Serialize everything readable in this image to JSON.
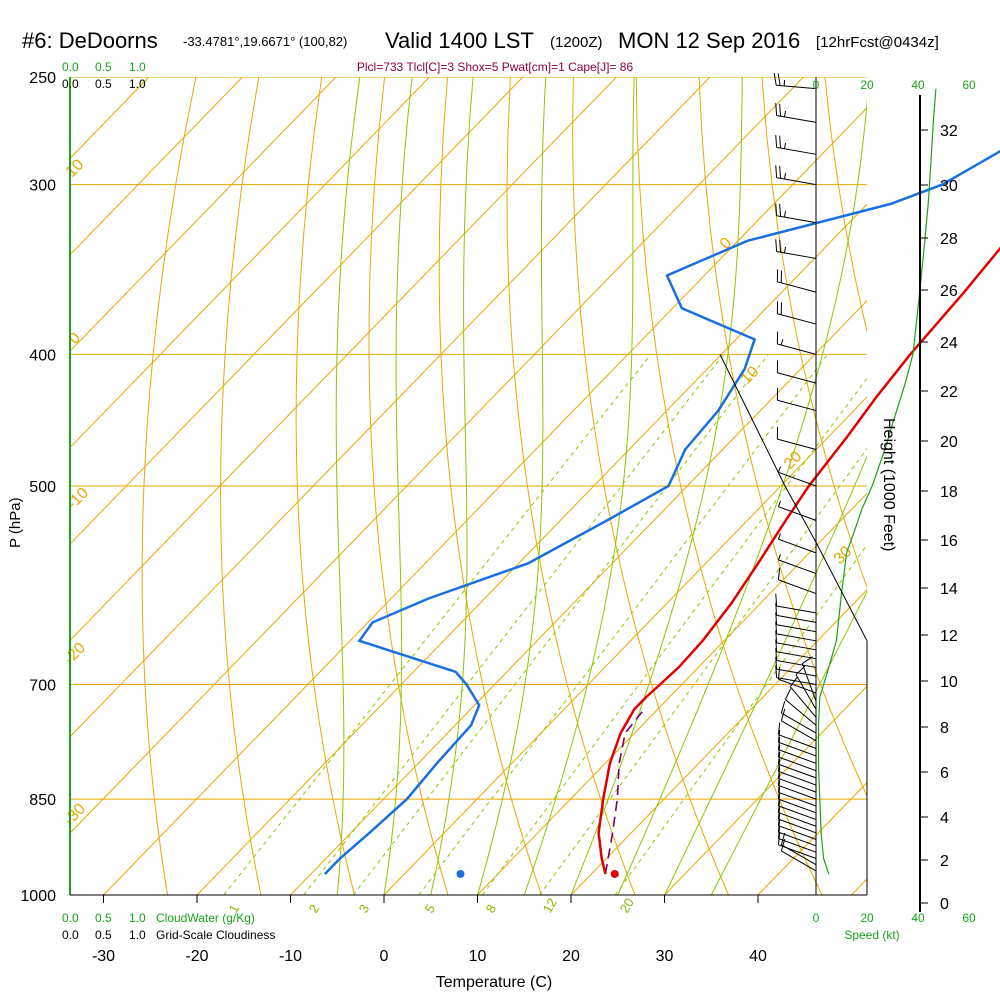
{
  "header": {
    "station": "#6: DeDoorns",
    "coords": "-33.4781°,19.6671° (100,82)",
    "valid": "Valid 1400 LST",
    "utc": "(1200Z)",
    "date": "MON 12 Sep 2016",
    "forecast": "[12hrFcst@0434z]"
  },
  "params_line": "Plcl=733 Tlcl[C]=3 Shox=5 Pwat[cm]=1 Cape[J]= 86",
  "colors": {
    "temperature": "#e00000",
    "dewpoint": "#1a6fe0",
    "parcel": "#7a0060",
    "isotherm": "#e8a800",
    "dry_adiabat": "#e8a800",
    "moist_adiabat": "#8cc800",
    "mixing_ratio": "#8cc800",
    "speed": "#1aa31a"
  },
  "cloud_scale": {
    "top_green": [
      "0.0",
      "0.5",
      "1.0"
    ],
    "top_black": [
      "0.0",
      "0.5",
      "1.0"
    ],
    "bottom_green": [
      "0.0",
      "0.5",
      "1.0"
    ],
    "bottom_black": [
      "0.0",
      "0.5",
      "1.0"
    ],
    "cloudwater_label": "CloudWater (g/Kg)",
    "cloudiness_label": "Grid-Scale Cloudiness"
  },
  "speed_axis": {
    "top_ticks": [
      "0",
      "20",
      "40",
      "60"
    ],
    "bottom_ticks": [
      "0",
      "20",
      "40",
      "60"
    ],
    "label": "Speed (kt)"
  },
  "height_axis": {
    "label": "Height (1000 Feet)",
    "ticks": [
      "0",
      "2",
      "4",
      "6",
      "8",
      "10",
      "12",
      "14",
      "16",
      "18",
      "20",
      "22",
      "24",
      "26",
      "28",
      "30",
      "32"
    ]
  },
  "chart_data": {
    "type": "skew-t",
    "xlabel": "Temperature (C)",
    "ylabel": "P (hPa)",
    "x_ticks": [
      "-30",
      "-20",
      "-10",
      "0",
      "10",
      "20",
      "30",
      "40"
    ],
    "y_ticks": [
      "250",
      "300",
      "400",
      "500",
      "700",
      "850",
      "1000"
    ],
    "xlim": [
      -34,
      36
    ],
    "ylim": [
      1000,
      250
    ],
    "isotherm_labels": [
      "10",
      "0",
      "-10",
      "-20",
      "-30",
      "0",
      "10",
      "20",
      "30"
    ],
    "mixing_ratio_labels": [
      "1",
      "2",
      "3",
      "5",
      "8",
      "12",
      "20"
    ],
    "temperature": [
      [
        965,
        21.5
      ],
      [
        940,
        19.5
      ],
      [
        900,
        16.5
      ],
      [
        850,
        13.5
      ],
      [
        800,
        10.5
      ],
      [
        760,
        8.5
      ],
      [
        730,
        7.5
      ],
      [
        715,
        7.5
      ],
      [
        700,
        7.7
      ],
      [
        680,
        7.9
      ],
      [
        650,
        7.7
      ],
      [
        610,
        6.9
      ],
      [
        570,
        5.6
      ],
      [
        530,
        4.1
      ],
      [
        500,
        3.0
      ],
      [
        460,
        2.0
      ],
      [
        430,
        1.0
      ],
      [
        400,
        0.2
      ],
      [
        360,
        -0.5
      ],
      [
        330,
        -1.3
      ],
      [
        300,
        -1.1
      ],
      [
        280,
        -0.5
      ],
      [
        255,
        0.3
      ]
    ],
    "dewpoint": [
      [
        965,
        -8.5
      ],
      [
        940,
        -8.5
      ],
      [
        900,
        -8
      ],
      [
        850,
        -7.5
      ],
      [
        800,
        -8
      ],
      [
        750,
        -8.3
      ],
      [
        725,
        -9.5
      ],
      [
        700,
        -13
      ],
      [
        685,
        -15.5
      ],
      [
        650,
        -29
      ],
      [
        630,
        -29.5
      ],
      [
        605,
        -26
      ],
      [
        570,
        -19
      ],
      [
        530,
        -15
      ],
      [
        500,
        -12
      ],
      [
        470,
        -14
      ],
      [
        440,
        -14.5
      ],
      [
        410,
        -16
      ],
      [
        390,
        -18
      ],
      [
        370,
        -29
      ],
      [
        350,
        -34
      ],
      [
        330,
        -29
      ],
      [
        310,
        -17.5
      ],
      [
        300,
        -14
      ],
      [
        285,
        -11.5
      ],
      [
        270,
        -9
      ],
      [
        255,
        -8
      ]
    ],
    "parcel": [
      [
        965,
        21.5
      ],
      [
        900,
        18
      ],
      [
        850,
        15
      ],
      [
        800,
        11.5
      ],
      [
        760,
        9
      ],
      [
        733,
        8.6
      ]
    ],
    "surface_temperature": 22.5,
    "surface_dewpoint": 6,
    "surface_pressure": 965,
    "winds": [
      {
        "p": 960,
        "dir": 300,
        "spd": 12
      },
      {
        "p": 950,
        "dir": 300,
        "spd": 12
      },
      {
        "p": 940,
        "dir": 290,
        "spd": 12
      },
      {
        "p": 930,
        "dir": 290,
        "spd": 13
      },
      {
        "p": 920,
        "dir": 290,
        "spd": 13
      },
      {
        "p": 910,
        "dir": 290,
        "spd": 13
      },
      {
        "p": 900,
        "dir": 290,
        "spd": 13
      },
      {
        "p": 890,
        "dir": 290,
        "spd": 14
      },
      {
        "p": 880,
        "dir": 290,
        "spd": 14
      },
      {
        "p": 870,
        "dir": 290,
        "spd": 14
      },
      {
        "p": 860,
        "dir": 290,
        "spd": 14
      },
      {
        "p": 850,
        "dir": 290,
        "spd": 14
      },
      {
        "p": 840,
        "dir": 290,
        "spd": 14
      },
      {
        "p": 830,
        "dir": 290,
        "spd": 14
      },
      {
        "p": 820,
        "dir": 290,
        "spd": 14
      },
      {
        "p": 810,
        "dir": 290,
        "spd": 14
      },
      {
        "p": 800,
        "dir": 290,
        "spd": 14
      },
      {
        "p": 790,
        "dir": 290,
        "spd": 14
      },
      {
        "p": 780,
        "dir": 290,
        "spd": 14
      },
      {
        "p": 770,
        "dir": 300,
        "spd": 14
      },
      {
        "p": 760,
        "dir": 300,
        "spd": 14
      },
      {
        "p": 750,
        "dir": 310,
        "spd": 12
      },
      {
        "p": 740,
        "dir": 320,
        "spd": 12
      },
      {
        "p": 730,
        "dir": 330,
        "spd": 10
      },
      {
        "p": 720,
        "dir": 340,
        "spd": 10
      },
      {
        "p": 710,
        "dir": 290,
        "spd": 10
      },
      {
        "p": 700,
        "dir": 280,
        "spd": 10
      },
      {
        "p": 690,
        "dir": 280,
        "spd": 10
      },
      {
        "p": 680,
        "dir": 280,
        "spd": 10
      },
      {
        "p": 670,
        "dir": 280,
        "spd": 10
      },
      {
        "p": 660,
        "dir": 280,
        "spd": 10
      },
      {
        "p": 650,
        "dir": 280,
        "spd": 10
      },
      {
        "p": 640,
        "dir": 280,
        "spd": 10
      },
      {
        "p": 630,
        "dir": 280,
        "spd": 10
      },
      {
        "p": 620,
        "dir": 280,
        "spd": 10
      },
      {
        "p": 600,
        "dir": 290,
        "spd": 10
      },
      {
        "p": 580,
        "dir": 290,
        "spd": 8
      },
      {
        "p": 560,
        "dir": 290,
        "spd": 8
      },
      {
        "p": 530,
        "dir": 290,
        "spd": 8
      },
      {
        "p": 500,
        "dir": 290,
        "spd": 8
      },
      {
        "p": 470,
        "dir": 285,
        "spd": 10
      },
      {
        "p": 440,
        "dir": 285,
        "spd": 10
      },
      {
        "p": 420,
        "dir": 285,
        "spd": 12
      },
      {
        "p": 400,
        "dir": 285,
        "spd": 15
      },
      {
        "p": 380,
        "dir": 285,
        "spd": 20
      },
      {
        "p": 360,
        "dir": 285,
        "spd": 20
      },
      {
        "p": 340,
        "dir": 280,
        "spd": 25
      },
      {
        "p": 320,
        "dir": 280,
        "spd": 25
      },
      {
        "p": 300,
        "dir": 280,
        "spd": 25
      },
      {
        "p": 285,
        "dir": 280,
        "spd": 25
      },
      {
        "p": 270,
        "dir": 280,
        "spd": 25
      },
      {
        "p": 255,
        "dir": 275,
        "spd": 25
      }
    ],
    "speed_profile": [
      [
        965,
        5
      ],
      [
        940,
        3
      ],
      [
        900,
        2
      ],
      [
        850,
        1.5
      ],
      [
        800,
        1
      ],
      [
        750,
        1
      ],
      [
        715,
        1.5
      ],
      [
        700,
        3
      ],
      [
        680,
        5
      ],
      [
        650,
        8
      ],
      [
        600,
        10
      ],
      [
        560,
        12
      ],
      [
        540,
        15
      ],
      [
        520,
        18
      ],
      [
        500,
        22
      ],
      [
        470,
        27
      ],
      [
        450,
        30
      ],
      [
        420,
        35
      ],
      [
        400,
        38
      ],
      [
        370,
        40
      ],
      [
        340,
        42
      ],
      [
        310,
        44
      ],
      [
        290,
        45
      ],
      [
        270,
        46
      ],
      [
        255,
        47
      ]
    ]
  }
}
